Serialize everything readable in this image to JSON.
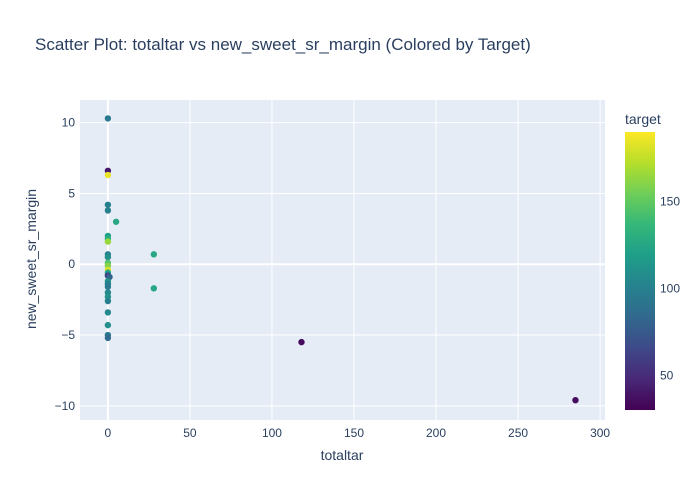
{
  "chart_data": {
    "type": "scatter",
    "title": "Scatter Plot: totaltar vs new_sweet_sr_margin (Colored by Target)",
    "xlabel": "totaltar",
    "ylabel": "new_sweet_sr_margin",
    "xlim": [
      -17,
      303
    ],
    "ylim": [
      -11,
      11.6
    ],
    "xticks": [
      0,
      50,
      100,
      150,
      200,
      250,
      300
    ],
    "yticks": [
      -10,
      -5,
      0,
      5,
      10
    ],
    "grid": true,
    "colorscale": "viridis",
    "colors": {
      "viridis": [
        "#440154",
        "#482878",
        "#3e4989",
        "#31688e",
        "#26828e",
        "#1f9e89",
        "#35b779",
        "#6ece58",
        "#b5de2b",
        "#fde725"
      ],
      "plot_bg": "#e5ecf6",
      "grid": "#ffffff",
      "text": "#2a3f5f"
    },
    "colorbar": {
      "title": "target",
      "min": 30,
      "max": 190,
      "ticks": [
        50,
        100,
        150
      ]
    },
    "points": [
      {
        "x": 0,
        "y": 10.3,
        "target": 95
      },
      {
        "x": 0,
        "y": 6.6,
        "target": 40
      },
      {
        "x": 0,
        "y": 6.3,
        "target": 185
      },
      {
        "x": 0,
        "y": 4.2,
        "target": 100
      },
      {
        "x": 0,
        "y": 3.8,
        "target": 100
      },
      {
        "x": 5,
        "y": 3.0,
        "target": 125
      },
      {
        "x": 0,
        "y": 2.0,
        "target": 120
      },
      {
        "x": 0,
        "y": 1.8,
        "target": 130
      },
      {
        "x": 0,
        "y": 1.6,
        "target": 165
      },
      {
        "x": 28,
        "y": 0.7,
        "target": 125
      },
      {
        "x": 0,
        "y": 0.7,
        "target": 100
      },
      {
        "x": 0,
        "y": 0.5,
        "target": 110
      },
      {
        "x": 0,
        "y": 0.1,
        "target": 145
      },
      {
        "x": 0,
        "y": -0.1,
        "target": 160
      },
      {
        "x": 0,
        "y": -0.4,
        "target": 180
      },
      {
        "x": 0,
        "y": -0.6,
        "target": 120
      },
      {
        "x": 0,
        "y": -0.8,
        "target": 60
      },
      {
        "x": 1,
        "y": -0.9,
        "target": 80
      },
      {
        "x": 0,
        "y": -1.2,
        "target": 110
      },
      {
        "x": 0,
        "y": -1.4,
        "target": 100
      },
      {
        "x": 0,
        "y": -1.6,
        "target": 95
      },
      {
        "x": 28,
        "y": -1.7,
        "target": 125
      },
      {
        "x": 0,
        "y": -2.0,
        "target": 105
      },
      {
        "x": 0,
        "y": -2.3,
        "target": 110
      },
      {
        "x": 0,
        "y": -2.6,
        "target": 100
      },
      {
        "x": 0,
        "y": -3.4,
        "target": 105
      },
      {
        "x": 0,
        "y": -4.3,
        "target": 110
      },
      {
        "x": 0,
        "y": -5.0,
        "target": 95
      },
      {
        "x": 0,
        "y": -5.2,
        "target": 85
      },
      {
        "x": 118,
        "y": -5.5,
        "target": 35
      },
      {
        "x": 285,
        "y": -9.6,
        "target": 35
      }
    ]
  }
}
